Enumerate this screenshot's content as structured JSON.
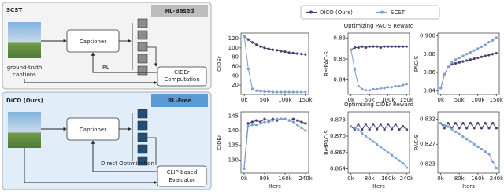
{
  "diagram": {
    "top": {
      "title": "SCST",
      "tag": "RL-Based",
      "gt": [
        "ground-truth",
        "captions"
      ],
      "captioner": "Captioner",
      "rl": "RL",
      "scorer": [
        "CIDEr",
        "Computation"
      ]
    },
    "bottom": {
      "title": "DiCO (Ours)",
      "tag": "RL-Free",
      "captioner": "Captioner",
      "direct": "Direct Optimization",
      "scorer": [
        "CLIP-based",
        "Evaluator"
      ]
    }
  },
  "chart_data": [
    {
      "type": "line",
      "ylabel": "CIDEr",
      "x": [
        0,
        10000,
        20000,
        30000,
        40000,
        50000,
        60000,
        70000,
        80000,
        90000,
        100000,
        110000,
        120000,
        130000,
        140000,
        150000
      ],
      "xlim": [
        -8000,
        158000
      ],
      "xticks": [
        {
          "value": 0,
          "label": "0k"
        },
        {
          "value": 50000,
          "label": "50k"
        },
        {
          "value": 100000,
          "label": "100k"
        },
        {
          "value": 150000,
          "label": "150k"
        }
      ],
      "ylim": [
        0,
        132
      ],
      "yticks": [
        20,
        40,
        60,
        80,
        100,
        120
      ],
      "series": [
        {
          "name": "DiCO (Ours)",
          "color": "#4b3f72",
          "values": [
            125,
            118,
            112,
            107,
            103,
            100,
            98,
            96,
            95,
            93,
            92,
            90,
            89,
            88,
            87,
            86
          ]
        },
        {
          "name": "SCST",
          "color": "#7b9fd4",
          "values": [
            125,
            55,
            12,
            8,
            7,
            6,
            6,
            5,
            5,
            5,
            5,
            5,
            5,
            5,
            5,
            5
          ]
        }
      ]
    },
    {
      "type": "line",
      "title": "Optimizing PAC-S Reward",
      "ylabel": "RefPAC-S",
      "x": [
        0,
        10000,
        20000,
        30000,
        40000,
        50000,
        60000,
        70000,
        80000,
        90000,
        100000,
        110000,
        120000,
        130000,
        140000,
        150000
      ],
      "xlim": [
        -8000,
        158000
      ],
      "xticks": [
        {
          "value": 0,
          "label": "0k"
        },
        {
          "value": 50000,
          "label": "50k"
        },
        {
          "value": 100000,
          "label": "100k"
        },
        {
          "value": 150000,
          "label": "150k"
        }
      ],
      "ylim": [
        0.826,
        0.885
      ],
      "yticks": [
        0.84,
        0.86,
        0.88
      ],
      "series": [
        {
          "name": "DiCO (Ours)",
          "color": "#4b3f72",
          "values": [
            0.869,
            0.871,
            0.871,
            0.872,
            0.871,
            0.872,
            0.872,
            0.872,
            0.871,
            0.872,
            0.872,
            0.872,
            0.872,
            0.872,
            0.872,
            0.872
          ]
        },
        {
          "name": "SCST",
          "color": "#7b9fd4",
          "values": [
            0.869,
            0.85,
            0.834,
            0.831,
            0.83,
            0.83,
            0.831,
            0.831,
            0.832,
            0.832,
            0.833,
            0.833,
            0.834,
            0.834,
            0.835,
            0.836
          ]
        }
      ]
    },
    {
      "type": "line",
      "ylabel": "PAC-S",
      "x": [
        0,
        10000,
        20000,
        30000,
        40000,
        50000,
        60000,
        70000,
        80000,
        90000,
        100000,
        110000,
        120000,
        130000,
        140000,
        150000
      ],
      "xlim": [
        -8000,
        158000
      ],
      "xticks": [
        {
          "value": 0,
          "label": "0k"
        },
        {
          "value": 50000,
          "label": "50k"
        },
        {
          "value": 100000,
          "label": "100k"
        },
        {
          "value": 150000,
          "label": "150k"
        }
      ],
      "ylim": [
        0.836,
        0.903
      ],
      "yticks": [
        0.84,
        0.86,
        0.88,
        {
          "value": 0.9,
          "label": "0.900"
        }
      ],
      "series": [
        {
          "name": "DiCO (Ours)",
          "color": "#4b3f72",
          "values": [
            0.843,
            0.858,
            0.866,
            0.869,
            0.87,
            0.871,
            0.872,
            0.873,
            0.874,
            0.875,
            0.876,
            0.877,
            0.878,
            0.879,
            0.88,
            0.881
          ]
        },
        {
          "name": "SCST",
          "color": "#7b9fd4",
          "values": [
            0.843,
            0.858,
            0.866,
            0.871,
            0.874,
            0.876,
            0.878,
            0.88,
            0.882,
            0.884,
            0.886,
            0.888,
            0.89,
            0.893,
            0.895,
            0.898
          ]
        }
      ]
    },
    {
      "type": "line",
      "ylabel": "CIDEr",
      "xlabel": "Iters",
      "x": [
        0,
        16000,
        32000,
        48000,
        64000,
        80000,
        96000,
        112000,
        128000,
        144000,
        160000,
        176000,
        192000,
        208000,
        224000,
        240000
      ],
      "xlim": [
        -12000,
        252000
      ],
      "xticks": [
        {
          "value": 0,
          "label": "0k"
        },
        {
          "value": 80000,
          "label": "80k"
        },
        {
          "value": 160000,
          "label": "160k"
        },
        {
          "value": 240000,
          "label": "240k"
        }
      ],
      "ylim": [
        125.5,
        146.5
      ],
      "yticks": [
        130,
        135,
        140,
        145
      ],
      "series": [
        {
          "name": "DiCO (Ours)",
          "color": "#4b3f72",
          "values": [
            127,
            142.5,
            143,
            143.5,
            143,
            144,
            143.5,
            144,
            143.5,
            144,
            144,
            143.5,
            144,
            143.5,
            143,
            142.5
          ]
        },
        {
          "name": "SCST",
          "color": "#7b9fd4",
          "values": [
            127,
            141.5,
            142,
            142,
            142.5,
            143,
            143,
            143.5,
            144,
            144,
            144,
            143.5,
            143,
            142,
            141,
            140
          ]
        }
      ]
    },
    {
      "type": "line",
      "title": "Optimizing CIDEr Reward",
      "ylabel": "RefPAC-S",
      "xlabel": "Iters",
      "x": [
        0,
        16000,
        32000,
        48000,
        64000,
        80000,
        96000,
        112000,
        128000,
        144000,
        160000,
        176000,
        192000,
        208000,
        224000,
        240000
      ],
      "xlim": [
        -12000,
        252000
      ],
      "xticks": [
        {
          "value": 0,
          "label": "0k"
        },
        {
          "value": 80000,
          "label": "80k"
        },
        {
          "value": 160000,
          "label": "160k"
        },
        {
          "value": 240000,
          "label": "240k"
        }
      ],
      "ylim": [
        0.8632,
        0.8745
      ],
      "yticks": [
        0.864,
        0.867,
        {
          "value": 0.87,
          "label": "0.870"
        },
        0.873
      ],
      "series": [
        {
          "name": "DiCO (Ours)",
          "color": "#4b3f72",
          "values": [
            0.8718,
            0.8712,
            0.8722,
            0.8712,
            0.8722,
            0.8712,
            0.8722,
            0.8713,
            0.8722,
            0.8712,
            0.8722,
            0.8713,
            0.8722,
            0.8712,
            0.8718,
            0.8712
          ]
        },
        {
          "name": "SCST",
          "color": "#7b9fd4",
          "values": [
            0.8718,
            0.8715,
            0.8712,
            0.8705,
            0.87,
            0.8695,
            0.869,
            0.8685,
            0.868,
            0.8675,
            0.867,
            0.8665,
            0.866,
            0.8655,
            0.865,
            0.8642
          ]
        }
      ]
    },
    {
      "type": "line",
      "ylabel": "PAC-S",
      "xlabel": "Iters",
      "x": [
        0,
        16000,
        32000,
        48000,
        64000,
        80000,
        96000,
        112000,
        128000,
        144000,
        160000,
        176000,
        192000,
        208000,
        224000,
        240000
      ],
      "xlim": [
        -12000,
        252000
      ],
      "xticks": [
        {
          "value": 0,
          "label": "0k"
        },
        {
          "value": 80000,
          "label": "80k"
        },
        {
          "value": 160000,
          "label": "160k"
        },
        {
          "value": 240000,
          "label": "240k"
        }
      ],
      "ylim": [
        0.8212,
        0.8335
      ],
      "yticks": [
        0.823,
        0.827,
        0.832
      ],
      "series": [
        {
          "name": "DiCO (Ours)",
          "color": "#4b3f72",
          "values": [
            0.8312,
            0.8302,
            0.8312,
            0.8302,
            0.8312,
            0.8302,
            0.8312,
            0.8302,
            0.8312,
            0.8302,
            0.8312,
            0.8302,
            0.8312,
            0.8302,
            0.8312,
            0.8302
          ]
        },
        {
          "name": "SCST",
          "color": "#7b9fd4",
          "values": [
            0.8312,
            0.8308,
            0.8305,
            0.83,
            0.8295,
            0.829,
            0.8285,
            0.828,
            0.8275,
            0.827,
            0.8265,
            0.826,
            0.8255,
            0.825,
            0.8235,
            0.8222
          ]
        }
      ]
    }
  ]
}
